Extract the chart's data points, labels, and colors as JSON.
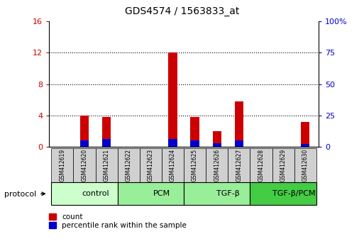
{
  "title": "GDS4574 / 1563833_at",
  "samples": [
    "GSM412619",
    "GSM412620",
    "GSM412621",
    "GSM412622",
    "GSM412623",
    "GSM412624",
    "GSM412625",
    "GSM412626",
    "GSM412627",
    "GSM412628",
    "GSM412629",
    "GSM412630"
  ],
  "count_values": [
    0,
    4.0,
    3.8,
    0,
    0,
    12.0,
    3.8,
    2.0,
    5.8,
    0,
    0,
    3.2
  ],
  "percentile_values_scaled": [
    0,
    0.8,
    1.0,
    0,
    0,
    1.0,
    0.8,
    0.5,
    0.8,
    0,
    0,
    0.4
  ],
  "left_ylim": [
    0,
    16
  ],
  "left_yticks": [
    0,
    4,
    8,
    12,
    16
  ],
  "right_ylim": [
    0,
    100
  ],
  "right_yticks": [
    0,
    25,
    50,
    75,
    100
  ],
  "right_yticklabels": [
    "0",
    "25",
    "50",
    "75",
    "100%"
  ],
  "bar_color": "#cc0000",
  "percentile_color": "#0000cc",
  "bar_width": 0.4,
  "groups": [
    {
      "label": "control",
      "start": 0,
      "end": 3
    },
    {
      "label": "PCM",
      "start": 3,
      "end": 6
    },
    {
      "label": "TGF-β",
      "start": 6,
      "end": 9
    },
    {
      "label": "TGF-β/PCM",
      "start": 9,
      "end": 12
    }
  ],
  "group_colors": [
    "#ccffcc",
    "#99ee99",
    "#99ee99",
    "#44cc44"
  ],
  "protocol_label": "protocol",
  "legend_count_label": "count",
  "legend_percentile_label": "percentile rank within the sample",
  "tick_color_left": "#cc0000",
  "tick_color_right": "#0000cc",
  "sample_box_color": "#d0d0d0",
  "dotted_yvals": [
    4,
    8,
    12
  ]
}
